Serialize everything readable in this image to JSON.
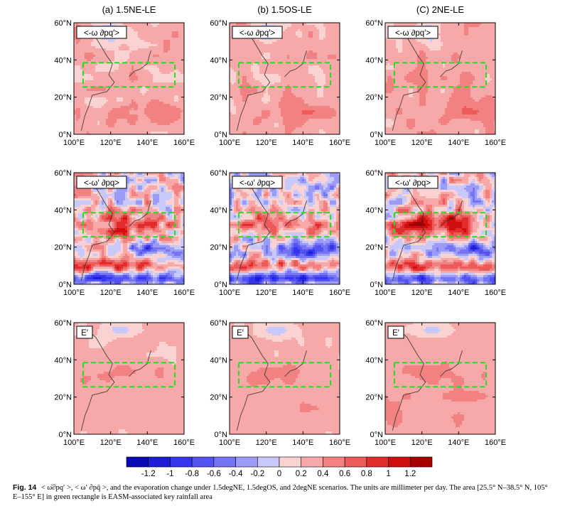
{
  "figure": {
    "column_titles": [
      "(a) 1.5NE-LE",
      "(b) 1.5OS-LE",
      "(C) 2NE-LE"
    ],
    "row_labels": [
      "<-ω ∂pq′>",
      "<-ω′ ∂pq>",
      "E′"
    ],
    "caption_label": "Fig. 14",
    "caption_text": "< ω̄∂pq′ >, < ω′ ∂pq̄ >, and the evaporation change under 1.5degNE, 1.5degOS, and 2degNE scenarios. The units are millimeter per day. The area [25.5° N–38.5° N, 105° E–155° E] in green rectangle is EASM-associated key rainfall area",
    "units": "millimeter per day",
    "key_area": {
      "lat_range": [
        25.5,
        38.5
      ],
      "lon_range": [
        105,
        155
      ],
      "color": "#22dd22"
    }
  },
  "chart_data": {
    "type": "heatmap",
    "x_ticks": [
      "100°E",
      "120°E",
      "140°E",
      "160°E"
    ],
    "y_ticks": [
      "0°N",
      "20°N",
      "40°N",
      "60°N"
    ],
    "xlim": [
      100,
      160
    ],
    "ylim": [
      0,
      60
    ],
    "colorbar": {
      "labels": [
        "-1.2",
        "-1",
        "-0.8",
        "-0.6",
        "-0.4",
        "-0.2",
        "0",
        "0.2",
        "0.4",
        "0.6",
        "0.8",
        "1",
        "1.2"
      ],
      "colors": [
        "#0a0ab4",
        "#1c1cd8",
        "#3535ee",
        "#5353f2",
        "#7474f4",
        "#9c9cf6",
        "#c8c8fa",
        "#fad2d2",
        "#f7a8a8",
        "#f28282",
        "#ec5a5a",
        "#e32d2d",
        "#d10e0e",
        "#a80000"
      ]
    },
    "panels": [
      {
        "row": 0,
        "col": 0,
        "title": "(a) 1.5NE-LE",
        "variable": "<-ω ∂pq′>",
        "base": 0.3,
        "box_mean": 0.3
      },
      {
        "row": 0,
        "col": 1,
        "title": "(b) 1.5OS-LE",
        "variable": "<-ω ∂pq′>",
        "base": 0.3,
        "box_mean": 0.3
      },
      {
        "row": 0,
        "col": 2,
        "title": "(C) 2NE-LE",
        "variable": "<-ω ∂pq′>",
        "base": 0.3,
        "box_mean": 0.4
      },
      {
        "row": 1,
        "col": 0,
        "title": "(a) 1.5NE-LE",
        "variable": "<-ω′ ∂pq>",
        "base": 0.1,
        "box_mean": 0.7
      },
      {
        "row": 1,
        "col": 1,
        "title": "(b) 1.5OS-LE",
        "variable": "<-ω′ ∂pq>",
        "base": 0.0,
        "box_mean": 0.6
      },
      {
        "row": 1,
        "col": 2,
        "title": "(C) 2NE-LE",
        "variable": "<-ω′ ∂pq>",
        "base": 0.1,
        "box_mean": 0.9
      },
      {
        "row": 2,
        "col": 0,
        "title": "(a) 1.5NE-LE",
        "variable": "E′",
        "base": 0.25,
        "box_mean": 0.4
      },
      {
        "row": 2,
        "col": 1,
        "title": "(b) 1.5OS-LE",
        "variable": "E′",
        "base": 0.25,
        "box_mean": 0.4
      },
      {
        "row": 2,
        "col": 2,
        "title": "(C) 2NE-LE",
        "variable": "E′",
        "base": 0.3,
        "box_mean": 0.4
      }
    ]
  }
}
